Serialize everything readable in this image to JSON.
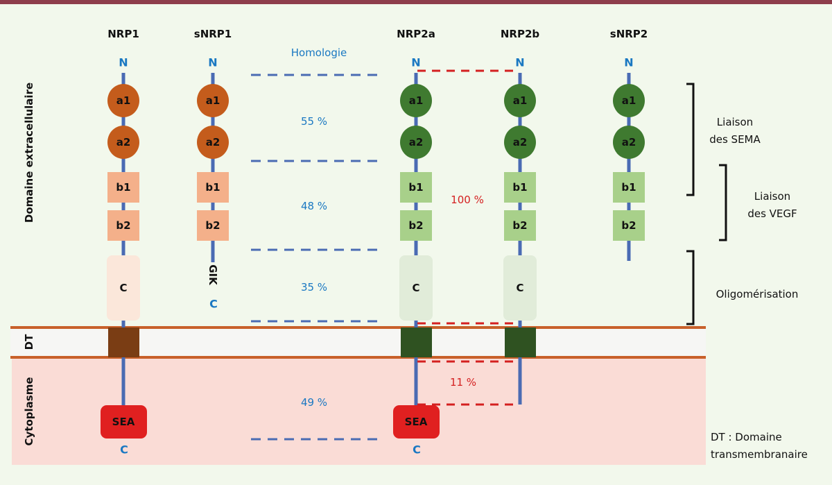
{
  "colors": {
    "background": "#f2f8ec",
    "top_bar": "#8e3e4c",
    "stem": "#4a6bb3",
    "membrane": "#c8602a",
    "membrane_band": "#f6f6f4",
    "cytoplasm": "#fadcd6",
    "nrp1_circle": "#c45c1c",
    "nrp1_box": "#f4b08a",
    "nrp1_c": "#fbe7da",
    "nrp1_tm": "#7a3d14",
    "nrp2_circle": "#3f7a30",
    "nrp2_box": "#a8d08a",
    "nrp2_c": "#e1ecd9",
    "nrp2_tm": "#2f5221",
    "sea": "#e02020",
    "terminal_text": "#1a78c2",
    "homology_text": "#1a78c2",
    "nrp2_homology_text": "#d42020"
  },
  "regions": {
    "extracellular": "Domaine extracellulaire",
    "transmembrane": "DT",
    "cytoplasm": "Cytoplasme"
  },
  "proteins": [
    {
      "name": "NRP1",
      "n_term": "N",
      "domains": [
        "a1",
        "a2",
        "b1",
        "b2",
        "C"
      ],
      "tm": true,
      "intracellular": "SEA",
      "c_term": "C"
    },
    {
      "name": "sNRP1",
      "n_term": "N",
      "domains": [
        "a1",
        "a2",
        "b1",
        "b2"
      ],
      "tail": "GIK",
      "c_term": "C"
    },
    {
      "name": "NRP2a",
      "n_term": "N",
      "domains": [
        "a1",
        "a2",
        "b1",
        "b2",
        "C"
      ],
      "tm": true,
      "intracellular": "SEA",
      "c_term": "C"
    },
    {
      "name": "NRP2b",
      "n_term": "N",
      "domains": [
        "a1",
        "a2",
        "b1",
        "b2",
        "C"
      ],
      "tm": true
    },
    {
      "name": "sNRP2",
      "n_term": "N",
      "domains": [
        "a1",
        "a2",
        "b1",
        "b2"
      ]
    }
  ],
  "homology": {
    "title": "Homologie",
    "a_domains": "55 %",
    "b_domains": "48 %",
    "c_domain": "35 %",
    "cytoplasmic": "49 %",
    "nrp2_extracellular": "100 %",
    "nrp2_cytoplasmic": "11 %"
  },
  "functions": {
    "sema": [
      "Liaison",
      "des SEMA"
    ],
    "vegf": [
      "Liaison",
      "des VEGF"
    ],
    "oligo": "Oligomérisation"
  },
  "legend": [
    "DT : Domaine",
    "transmembranaire"
  ]
}
